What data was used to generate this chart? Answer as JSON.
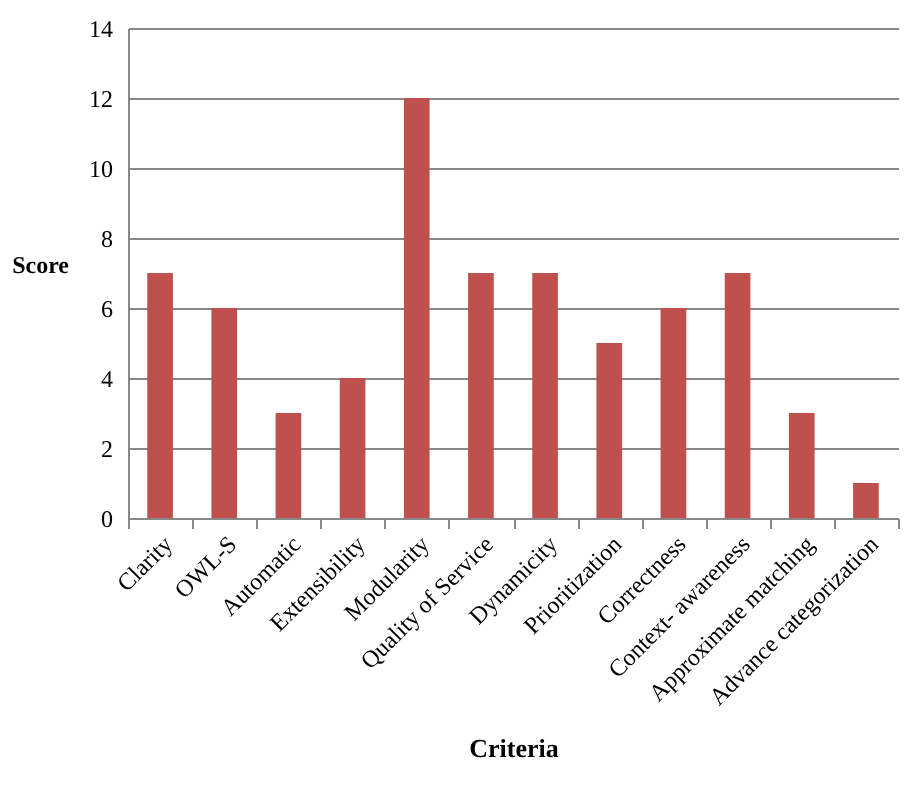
{
  "chart_data": {
    "type": "bar",
    "xlabel": "Criteria",
    "ylabel": "Score",
    "categories": [
      "Clarity",
      "OWL-S",
      "Automatic",
      "Extensibility",
      "Modularity",
      "Quality of Service",
      "Dynamicity",
      "Prioritization",
      "Correctness",
      "Context- awareness",
      "Approximate matching",
      "Advance categorization"
    ],
    "values": [
      7,
      6,
      3,
      4,
      12,
      7,
      7,
      5,
      6,
      7,
      3,
      1
    ],
    "color": "#c0504d",
    "ylim": [
      0,
      14
    ],
    "yticks": [
      0,
      2,
      4,
      6,
      8,
      10,
      12,
      14
    ],
    "grid": "y"
  }
}
